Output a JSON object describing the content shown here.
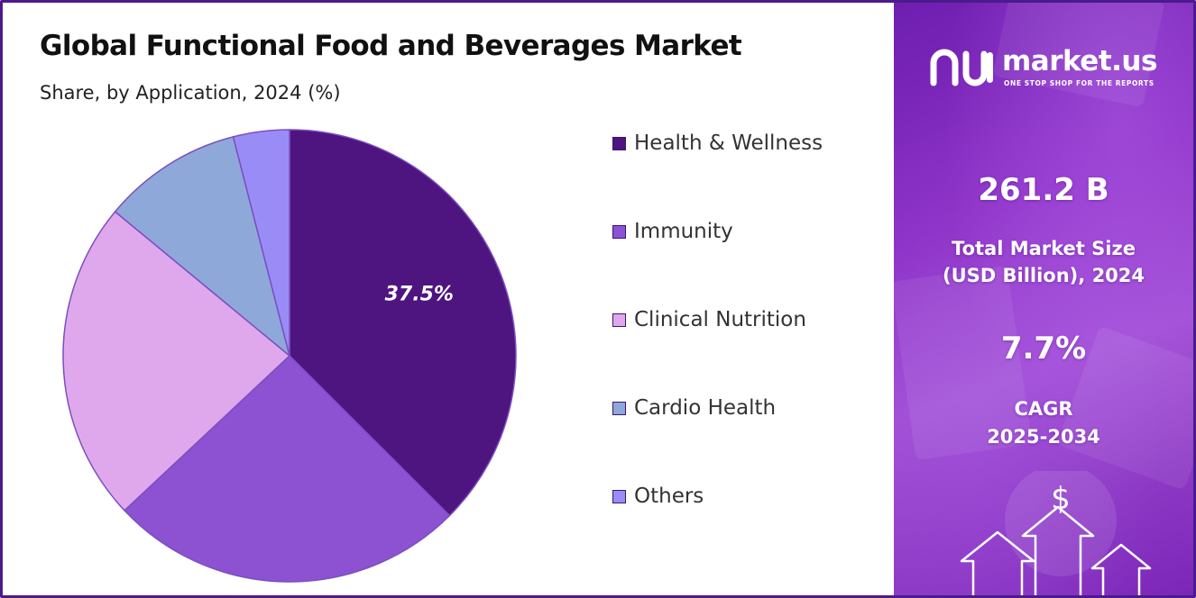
{
  "header": {
    "title": "Global Functional Food and Beverages Market",
    "subtitle": "Share, by Application, 2024 (%)"
  },
  "chart_data": {
    "type": "pie",
    "categories": [
      "Health & Wellness",
      "Immunity",
      "Clinical Nutrition",
      "Cardio Health",
      "Others"
    ],
    "values": [
      37.5,
      25.5,
      23.0,
      10.0,
      4.0
    ],
    "colors": [
      "#4e1480",
      "#8c52d2",
      "#e0a8ec",
      "#8ea8da",
      "#9a8cf6"
    ],
    "slice_labels": [
      "37.5%",
      "",
      "",
      "",
      ""
    ],
    "legend_placement": "right"
  },
  "brand": {
    "name": "market.us",
    "tagline": "ONE STOP SHOP FOR THE REPORTS"
  },
  "stats": {
    "market_size_value": "261.2 B",
    "market_size_label_line1": "Total Market Size",
    "market_size_label_line2": "(USD Billion), 2024",
    "cagr_value": "7.7%",
    "cagr_label_line1": "CAGR",
    "cagr_label_line2": "2025-2034"
  },
  "icons": {
    "dollar_symbol": "$"
  }
}
